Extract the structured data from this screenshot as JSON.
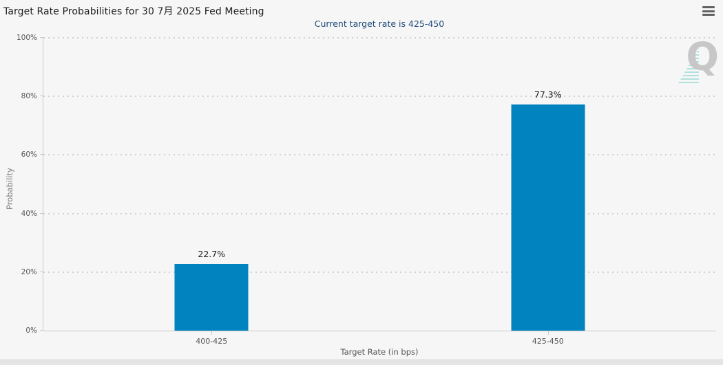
{
  "menu": {
    "icon": "hamburger-menu-icon"
  },
  "watermark": {
    "letter": "Q"
  },
  "colors": {
    "background": "#f6f6f6",
    "bar": "#0083be",
    "subtitle_text": "#1e4a78",
    "axis_text": "#555555",
    "grid": "#d0d0d0",
    "watermark_gray": "#c7c7c7",
    "watermark_teal": "#6ecdc8"
  },
  "chart_data": {
    "type": "bar",
    "title": "Target Rate Probabilities for 30 7月 2025 Fed Meeting",
    "subtitle": "Current target rate is 425-450",
    "categories": [
      "400-425",
      "425-450"
    ],
    "values": [
      22.7,
      77.3
    ],
    "value_labels": [
      "22.7%",
      "77.3%"
    ],
    "xlabel": "Target Rate (in bps)",
    "ylabel": "Probability",
    "ylim": [
      0,
      100
    ],
    "yticks": [
      0,
      20,
      40,
      60,
      80,
      100
    ],
    "ytick_labels": [
      "0%",
      "20%",
      "40%",
      "60%",
      "80%",
      "100%"
    ],
    "grid": "horizontal dotted",
    "legend": "none",
    "bar_color": "#0083be"
  }
}
